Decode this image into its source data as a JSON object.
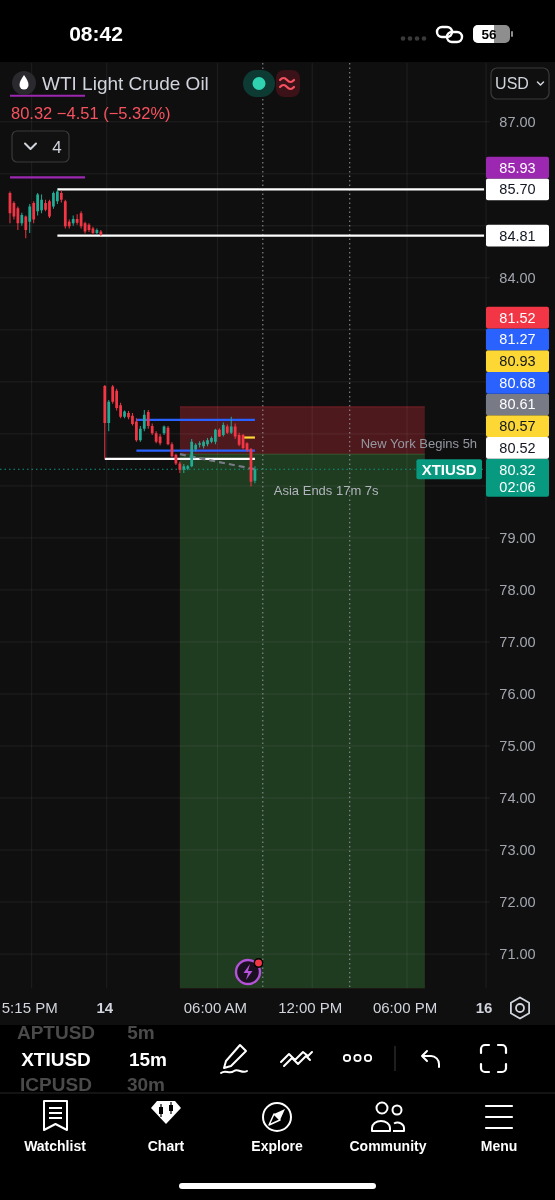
{
  "chart_data": {
    "type": "candlestick",
    "title": "WTI Light Crude Oil",
    "subtitle": "80.32 −4.51 (−5.32%)",
    "categories": [
      null,
      null,
      null,
      null,
      null,
      "5:15 PM",
      null,
      null,
      null,
      null,
      null,
      null,
      null,
      null,
      null,
      null,
      null,
      null,
      null,
      null,
      null,
      null,
      null,
      null,
      "14",
      null,
      null,
      null,
      null,
      null,
      null,
      null,
      null,
      null,
      null,
      null,
      null,
      null,
      null,
      null,
      null,
      null,
      null,
      null,
      null,
      null,
      null,
      null,
      null,
      null,
      null,
      null,
      "06:00 AM",
      null,
      null,
      null,
      null,
      null,
      null,
      null,
      null,
      null,
      null,
      null,
      null,
      null,
      null,
      null,
      null,
      null,
      null,
      null,
      null,
      null,
      null,
      null,
      "12:00 PM",
      null,
      null,
      null,
      null,
      null,
      null,
      null,
      null,
      null,
      null,
      null,
      null,
      null,
      null,
      null,
      null,
      null,
      null,
      null,
      null,
      null,
      null,
      null,
      "06:00 PM",
      null,
      null,
      null,
      null,
      null,
      null,
      null,
      null,
      null,
      null,
      null,
      null,
      null,
      null,
      null,
      null,
      null,
      null,
      null,
      "16",
      null
    ],
    "ohlc": [
      [
        85.63,
        85.66,
        85.05,
        85.24
      ],
      [
        85.44,
        85.47,
        85.12,
        85.18
      ],
      [
        85.34,
        85.37,
        84.92,
        85.05
      ],
      [
        85.05,
        85.25,
        85.0,
        85.21
      ],
      [
        85.18,
        85.2,
        84.76,
        84.92
      ],
      [
        85.08,
        85.42,
        84.86,
        85.37
      ],
      [
        85.44,
        85.47,
        85.05,
        85.12
      ],
      [
        85.28,
        85.63,
        85.2,
        85.6
      ],
      [
        85.3,
        85.6,
        85.24,
        85.5
      ],
      [
        85.44,
        85.5,
        85.28,
        85.31
      ],
      [
        85.47,
        85.5,
        85.15,
        85.18
      ],
      [
        85.37,
        85.66,
        85.33,
        85.63
      ],
      [
        85.47,
        85.7,
        85.42,
        85.66
      ],
      [
        85.63,
        85.68,
        85.45,
        85.5
      ],
      [
        85.47,
        85.5,
        84.95,
        84.99
      ],
      [
        85.08,
        85.12,
        84.95,
        84.99
      ],
      [
        85.05,
        85.2,
        85.0,
        85.13
      ],
      [
        85.13,
        85.22,
        85.02,
        85.06
      ],
      [
        85.24,
        85.28,
        84.95,
        84.99
      ],
      [
        85.05,
        85.08,
        84.85,
        84.89
      ],
      [
        85.02,
        85.05,
        84.88,
        84.92
      ],
      [
        84.95,
        84.98,
        84.83,
        84.86
      ],
      [
        84.86,
        84.95,
        84.83,
        84.92
      ],
      [
        84.89,
        84.92,
        84.81,
        84.83
      ],
      [
        81.92,
        81.94,
        80.52,
        81.21
      ],
      [
        81.21,
        81.65,
        81.05,
        81.62
      ],
      [
        81.91,
        81.94,
        81.58,
        81.62
      ],
      [
        81.83,
        81.87,
        81.45,
        81.5
      ],
      [
        81.55,
        81.6,
        81.3,
        81.33
      ],
      [
        81.33,
        81.45,
        81.3,
        81.43
      ],
      [
        81.4,
        81.44,
        81.28,
        81.32
      ],
      [
        81.35,
        81.4,
        81.16,
        81.19
      ],
      [
        81.24,
        81.3,
        80.85,
        80.88
      ],
      [
        80.88,
        81.15,
        80.85,
        81.1
      ],
      [
        81.1,
        81.46,
        81.05,
        81.37
      ],
      [
        81.42,
        81.46,
        81.1,
        81.15
      ],
      [
        81.15,
        81.2,
        80.98,
        81.01
      ],
      [
        81.01,
        81.05,
        80.82,
        80.85
      ],
      [
        80.95,
        81.0,
        80.78,
        80.82
      ],
      [
        81.01,
        81.16,
        80.98,
        81.14
      ],
      [
        81.12,
        81.15,
        80.78,
        80.8
      ],
      [
        80.8,
        80.84,
        80.55,
        80.57
      ],
      [
        80.6,
        80.62,
        80.4,
        80.43
      ],
      [
        80.43,
        80.47,
        80.25,
        80.31
      ],
      [
        80.31,
        80.42,
        80.25,
        80.38
      ],
      [
        80.33,
        80.4,
        80.3,
        80.38
      ],
      [
        80.38,
        80.9,
        80.36,
        80.85
      ],
      [
        80.7,
        80.82,
        80.66,
        80.79
      ],
      [
        80.79,
        80.86,
        80.74,
        80.82
      ],
      [
        80.76,
        80.88,
        80.72,
        80.85
      ],
      [
        80.8,
        80.92,
        80.76,
        80.88
      ],
      [
        80.85,
        80.95,
        80.82,
        80.92
      ],
      [
        80.85,
        81.1,
        80.8,
        81.08
      ],
      [
        81.08,
        81.11,
        80.94,
        80.95
      ],
      [
        80.98,
        81.22,
        80.95,
        81.17
      ],
      [
        81.14,
        81.18,
        81.0,
        81.02
      ],
      [
        81.02,
        81.33,
        81.0,
        81.14
      ],
      [
        81.14,
        81.2,
        80.9,
        80.95
      ],
      [
        80.98,
        81.02,
        80.76,
        80.79
      ],
      [
        80.98,
        81.0,
        80.7,
        80.73
      ],
      [
        80.82,
        80.84,
        80.65,
        80.69
      ],
      [
        80.71,
        80.73,
        79.99,
        80.08
      ],
      [
        80.1,
        80.38,
        80.05,
        80.32
      ],
      null,
      null,
      null,
      null,
      null,
      null,
      null,
      null,
      null,
      null,
      null,
      null,
      null,
      null,
      null,
      null,
      null,
      null,
      null,
      null,
      null,
      null,
      null,
      null,
      null,
      null,
      null,
      null,
      null,
      null,
      null,
      null,
      null,
      null,
      null,
      null,
      null,
      null,
      null,
      null,
      null,
      null,
      null,
      null,
      null,
      null,
      null,
      null,
      null,
      null,
      null,
      null,
      null,
      null,
      null,
      null,
      null,
      null,
      null
    ],
    "colors": [
      "#f23645",
      "#f23645",
      "#f23645",
      "#22ab94",
      "#f23645",
      "#22ab94",
      "#f23645",
      "#22ab94",
      "#22ab94",
      "#f23645",
      "#f23645",
      "#22ab94",
      "#22ab94",
      "#f23645",
      "#f23645",
      "#f23645",
      "#22ab94",
      "#f23645",
      "#f23645",
      "#f23645",
      "#f23645",
      "#f23645",
      "#22ab94",
      "#f23645",
      "#f23645",
      "#22ab94",
      "#f23645",
      "#f23645",
      "#f23645",
      "#22ab94",
      "#f23645",
      "#f23645",
      "#f23645",
      "#22ab94",
      "#22ab94",
      "#f23645",
      "#f23645",
      "#f23645",
      "#f23645",
      "#22ab94",
      "#f23645",
      "#f23645",
      "#f23645",
      "#f23645",
      "#22ab94",
      "#22ab94",
      "#22ab94",
      "#22ab94",
      "#22ab94",
      "#22ab94",
      "#22ab94",
      "#22ab94",
      "#22ab94",
      "#f23645",
      "#22ab94",
      "#f23645",
      "#22ab94",
      "#f23645",
      "#f23645",
      "#f23645",
      "#f23645",
      "#f23645",
      "#22ab94",
      null,
      null,
      null,
      null,
      null,
      null,
      null,
      null,
      null,
      null,
      null,
      null,
      null,
      null,
      null,
      null,
      null,
      null,
      null,
      null,
      null,
      null,
      null,
      null,
      null,
      null,
      null,
      null,
      null,
      null,
      null,
      null,
      null,
      null,
      null,
      null,
      null,
      null,
      null,
      null,
      null,
      null,
      null,
      null,
      null,
      null,
      null,
      null,
      null,
      null,
      null,
      null,
      null,
      null,
      null,
      null,
      null,
      null,
      null
    ],
    "ylim": [
      70.34,
      88.13
    ],
    "yticks": [
      {
        "value": 87,
        "label": "87.00"
      },
      {
        "value": 86,
        "label": null
      },
      {
        "value": 85,
        "label": null
      },
      {
        "value": 84,
        "label": "84.00"
      },
      {
        "value": 83,
        "label": null
      },
      {
        "value": 82,
        "label": null
      },
      {
        "value": 81,
        "label": null
      },
      {
        "value": 80,
        "label": null
      },
      {
        "value": 79,
        "label": "79.00"
      },
      {
        "value": 78,
        "label": "78.00"
      },
      {
        "value": 77,
        "label": "77.00"
      },
      {
        "value": 76,
        "label": "76.00"
      },
      {
        "value": 75,
        "label": "75.00"
      },
      {
        "value": 74,
        "label": "74.00"
      },
      {
        "value": 73,
        "label": "73.00"
      },
      {
        "value": 72,
        "label": "72.00"
      },
      {
        "value": 71,
        "label": "71.00"
      }
    ],
    "grid": true,
    "series": [
      {
        "type": "area",
        "color": "#f23645",
        "values": [
          null,
          null,
          null,
          null,
          null,
          null,
          null,
          null,
          null,
          null,
          null,
          null,
          null,
          null,
          null,
          null,
          null,
          null,
          null,
          null,
          null,
          null,
          null,
          null,
          null,
          null,
          null,
          null,
          null,
          null,
          null,
          null,
          null,
          null,
          null,
          null,
          null,
          null,
          null,
          null,
          null,
          null,
          null,
          81.52,
          81.52,
          81.52,
          81.52,
          81.52,
          81.52,
          81.52,
          81.52,
          81.52,
          81.52,
          81.52,
          81.52,
          81.52,
          81.52,
          81.52,
          81.52,
          81.52,
          81.52,
          81.52,
          81.52,
          81.52,
          81.52,
          81.52,
          81.52,
          81.52,
          81.52,
          81.52,
          81.52,
          81.52,
          81.52,
          81.52,
          81.52,
          81.52,
          81.52,
          81.52,
          81.52,
          81.52,
          81.52,
          81.52,
          81.52,
          81.52,
          81.52,
          81.52,
          81.52,
          81.52,
          81.52,
          81.52,
          81.52,
          81.52,
          81.52,
          81.52,
          81.52,
          81.52,
          81.52,
          81.52,
          81.52,
          81.52,
          81.52,
          81.52,
          81.52,
          81.52,
          81.52,
          81.52,
          null,
          null,
          null,
          null,
          null,
          null,
          null,
          null,
          null,
          null,
          null,
          null,
          null,
          null,
          null,
          null
        ]
      },
      {
        "type": "area",
        "color": "#4caf50",
        "values": [
          null,
          null,
          null,
          null,
          null,
          null,
          null,
          null,
          null,
          null,
          null,
          null,
          null,
          null,
          null,
          null,
          null,
          null,
          null,
          null,
          null,
          null,
          null,
          null,
          null,
          null,
          null,
          null,
          null,
          null,
          null,
          null,
          null,
          null,
          null,
          null,
          null,
          null,
          null,
          null,
          null,
          null,
          null,
          80.61,
          80.61,
          80.61,
          80.61,
          80.61,
          80.61,
          80.61,
          80.61,
          80.61,
          80.61,
          80.61,
          80.61,
          80.61,
          80.61,
          80.61,
          80.61,
          80.61,
          80.61,
          80.61,
          80.61,
          80.61,
          80.61,
          80.61,
          80.61,
          80.61,
          80.61,
          80.61,
          80.61,
          80.61,
          80.61,
          80.61,
          80.61,
          80.61,
          80.61,
          80.61,
          80.61,
          80.61,
          80.61,
          80.61,
          80.61,
          80.61,
          80.61,
          80.61,
          80.61,
          80.61,
          80.61,
          80.61,
          80.61,
          80.61,
          80.61,
          80.61,
          80.61,
          80.61,
          80.61,
          80.61,
          80.61,
          80.61,
          80.61,
          80.61,
          80.61,
          80.61,
          80.61,
          80.61,
          null,
          null,
          null,
          null,
          null,
          null,
          null,
          null,
          null,
          null,
          null,
          null,
          null,
          null,
          null,
          null
        ]
      },
      {
        "type": "line",
        "color": "#9c27b0",
        "values": [
          87.5,
          87.5,
          87.5,
          87.5,
          87.5,
          87.5,
          87.5,
          87.5,
          87.5,
          87.5,
          87.5,
          87.5,
          87.5,
          87.5,
          87.5,
          87.5,
          87.5,
          87.5,
          87.5,
          87.5,
          null,
          null,
          null,
          null,
          null,
          null,
          null,
          null,
          null,
          null,
          null,
          null,
          null,
          null,
          null,
          null,
          null,
          null,
          null,
          null,
          null,
          null,
          null,
          null,
          null,
          null,
          null,
          null,
          null,
          null,
          null,
          null,
          null,
          null,
          null,
          null,
          null,
          null,
          null,
          null,
          null,
          null,
          null,
          null,
          null,
          null,
          null,
          null,
          null,
          null,
          null,
          null,
          null,
          null,
          null,
          null,
          null,
          null,
          null,
          null,
          null,
          null,
          null,
          null,
          null,
          null,
          null,
          null,
          null,
          null,
          null,
          null,
          null,
          null,
          null,
          null,
          null,
          null,
          null,
          null,
          null,
          null,
          null,
          null,
          null,
          null,
          null,
          null,
          null,
          null,
          null,
          null,
          null,
          null,
          null,
          null,
          null,
          null,
          null,
          null,
          null,
          null
        ]
      },
      {
        "type": "line",
        "color": "#9c27b0",
        "values": [
          85.93,
          85.93,
          85.93,
          85.93,
          85.93,
          85.93,
          85.93,
          85.93,
          85.93,
          85.93,
          85.93,
          85.93,
          85.93,
          85.93,
          85.93,
          85.93,
          85.93,
          85.93,
          85.93,
          85.93,
          null,
          null,
          null,
          null,
          null,
          null,
          null,
          null,
          null,
          null,
          null,
          null,
          null,
          null,
          null,
          null,
          null,
          null,
          null,
          null,
          null,
          null,
          null,
          null,
          null,
          null,
          null,
          null,
          null,
          null,
          null,
          null,
          null,
          null,
          null,
          null,
          null,
          null,
          null,
          null,
          null,
          null,
          null,
          null,
          null,
          null,
          null,
          null,
          null,
          null,
          null,
          null,
          null,
          null,
          null,
          null,
          null,
          null,
          null,
          null,
          null,
          null,
          null,
          null,
          null,
          null,
          null,
          null,
          null,
          null,
          null,
          null,
          null,
          null,
          null,
          null,
          null,
          null,
          null,
          null,
          null,
          null,
          null,
          null,
          null,
          null,
          null,
          null,
          null,
          null,
          null,
          null,
          null,
          null,
          null,
          null,
          null,
          null,
          null,
          null,
          null,
          null
        ]
      },
      {
        "type": "line",
        "color": "#ffffff",
        "values": [
          null,
          null,
          null,
          null,
          null,
          null,
          null,
          null,
          null,
          null,
          null,
          null,
          85.7,
          85.7,
          85.7,
          85.7,
          85.7,
          85.7,
          85.7,
          85.7,
          85.7,
          85.7,
          85.7,
          85.7,
          85.7,
          85.7,
          85.7,
          85.7,
          85.7,
          85.7,
          85.7,
          85.7,
          85.7,
          85.7,
          85.7,
          85.7,
          85.7,
          85.7,
          85.7,
          85.7,
          85.7,
          85.7,
          85.7,
          85.7,
          85.7,
          85.7,
          85.7,
          85.7,
          85.7,
          85.7,
          85.7,
          85.7,
          85.7,
          85.7,
          85.7,
          85.7,
          85.7,
          85.7,
          85.7,
          85.7,
          85.7,
          85.7,
          85.7,
          85.7,
          85.7,
          85.7,
          85.7,
          85.7,
          85.7,
          85.7,
          85.7,
          85.7,
          85.7,
          85.7,
          85.7,
          85.7,
          85.7,
          85.7,
          85.7,
          85.7,
          85.7,
          85.7,
          85.7,
          85.7,
          85.7,
          85.7,
          85.7,
          85.7,
          85.7,
          85.7,
          85.7,
          85.7,
          85.7,
          85.7,
          85.7,
          85.7,
          85.7,
          85.7,
          85.7,
          85.7,
          85.7,
          85.7,
          85.7,
          85.7,
          85.7,
          85.7,
          85.7,
          85.7,
          85.7,
          85.7,
          85.7,
          85.7,
          85.7,
          85.7,
          85.7,
          85.7,
          85.7,
          85.7,
          85.7,
          85.7,
          85.7,
          null
        ],
        "value_labels": [
          null,
          null,
          null,
          null,
          null,
          null,
          null,
          null,
          null,
          null,
          null,
          null,
          null,
          null,
          null,
          null,
          null,
          null,
          null,
          null,
          null,
          null,
          null,
          null,
          null,
          null,
          null,
          null,
          null,
          null,
          null,
          null,
          null,
          null,
          null,
          null,
          null,
          null,
          null,
          null,
          null,
          null,
          null,
          null,
          null,
          null,
          null,
          null,
          null,
          null,
          null,
          null,
          null,
          null,
          null,
          null,
          null,
          null,
          null,
          null,
          null,
          null,
          null,
          null,
          null,
          null,
          null,
          null,
          null,
          null,
          null,
          null,
          null,
          null,
          null,
          null,
          null,
          null,
          null,
          null,
          null,
          null,
          null,
          null,
          null,
          null,
          null,
          null,
          null,
          null,
          null,
          null,
          null,
          null,
          null,
          null,
          null,
          null,
          null,
          null,
          null,
          null,
          null,
          null,
          null,
          null,
          null,
          null,
          null,
          null,
          null,
          null,
          null,
          null,
          null,
          null,
          null,
          null,
          null,
          null,
          "85.70",
          null
        ]
      },
      {
        "type": "line",
        "color": "#ffffff",
        "values": [
          null,
          null,
          null,
          null,
          null,
          null,
          null,
          null,
          null,
          null,
          null,
          null,
          84.81,
          84.81,
          84.81,
          84.81,
          84.81,
          84.81,
          84.81,
          84.81,
          84.81,
          84.81,
          84.81,
          84.81,
          84.81,
          84.81,
          84.81,
          84.81,
          84.81,
          84.81,
          84.81,
          84.81,
          84.81,
          84.81,
          84.81,
          84.81,
          84.81,
          84.81,
          84.81,
          84.81,
          84.81,
          84.81,
          84.81,
          84.81,
          84.81,
          84.81,
          84.81,
          84.81,
          84.81,
          84.81,
          84.81,
          84.81,
          84.81,
          84.81,
          84.81,
          84.81,
          84.81,
          84.81,
          84.81,
          84.81,
          84.81,
          84.81,
          84.81,
          84.81,
          84.81,
          84.81,
          84.81,
          84.81,
          84.81,
          84.81,
          84.81,
          84.81,
          84.81,
          84.81,
          84.81,
          84.81,
          84.81,
          84.81,
          84.81,
          84.81,
          84.81,
          84.81,
          84.81,
          84.81,
          84.81,
          84.81,
          84.81,
          84.81,
          84.81,
          84.81,
          84.81,
          84.81,
          84.81,
          84.81,
          84.81,
          84.81,
          84.81,
          84.81,
          84.81,
          84.81,
          84.81,
          84.81,
          84.81,
          84.81,
          84.81,
          84.81,
          84.81,
          84.81,
          84.81,
          84.81,
          84.81,
          84.81,
          84.81,
          84.81,
          84.81,
          84.81,
          84.81,
          84.81,
          84.81,
          84.81,
          84.81,
          null
        ],
        "value_labels": [
          null,
          null,
          null,
          null,
          null,
          null,
          null,
          null,
          null,
          null,
          null,
          null,
          null,
          null,
          null,
          null,
          null,
          null,
          null,
          null,
          null,
          null,
          null,
          null,
          null,
          null,
          null,
          null,
          null,
          null,
          null,
          null,
          null,
          null,
          null,
          null,
          null,
          null,
          null,
          null,
          null,
          null,
          null,
          null,
          null,
          null,
          null,
          null,
          null,
          null,
          null,
          null,
          null,
          null,
          null,
          null,
          null,
          null,
          null,
          null,
          null,
          null,
          null,
          null,
          null,
          null,
          null,
          null,
          null,
          null,
          null,
          null,
          null,
          null,
          null,
          null,
          null,
          null,
          null,
          null,
          null,
          null,
          null,
          null,
          null,
          null,
          null,
          null,
          null,
          null,
          null,
          null,
          null,
          null,
          null,
          null,
          null,
          null,
          null,
          null,
          null,
          null,
          null,
          null,
          null,
          null,
          null,
          null,
          null,
          null,
          null,
          null,
          null,
          null,
          null,
          null,
          null,
          null,
          null,
          null,
          "84.81",
          null
        ]
      },
      {
        "type": "line",
        "color": "#2962ff",
        "values": [
          null,
          null,
          null,
          null,
          null,
          null,
          null,
          null,
          null,
          null,
          null,
          null,
          null,
          null,
          null,
          null,
          null,
          null,
          null,
          null,
          null,
          null,
          null,
          null,
          null,
          null,
          null,
          null,
          null,
          null,
          null,
          null,
          81.27,
          81.27,
          81.27,
          81.27,
          81.27,
          81.27,
          81.27,
          81.27,
          81.27,
          81.27,
          81.27,
          81.27,
          81.27,
          81.27,
          81.27,
          81.27,
          81.27,
          81.27,
          81.27,
          81.27,
          81.27,
          81.27,
          81.27,
          81.27,
          81.27,
          81.27,
          81.27,
          81.27,
          81.27,
          81.27,
          81.27,
          null,
          null,
          null,
          null,
          null,
          null,
          null,
          null,
          null,
          null,
          null,
          null,
          null,
          null,
          null,
          null,
          null,
          null,
          null,
          null,
          null,
          null,
          null,
          null,
          null,
          null,
          null,
          null,
          null,
          null,
          null,
          null,
          null,
          null,
          null,
          null,
          null,
          null,
          null,
          null,
          null,
          null,
          null,
          null,
          null,
          null,
          null,
          null,
          null,
          null,
          null,
          null,
          null,
          null,
          null,
          null,
          null,
          null,
          null
        ]
      },
      {
        "type": "line",
        "color": "#2962ff",
        "values": [
          null,
          null,
          null,
          null,
          null,
          null,
          null,
          null,
          null,
          null,
          null,
          null,
          null,
          null,
          null,
          null,
          null,
          null,
          null,
          null,
          null,
          null,
          null,
          null,
          null,
          null,
          null,
          null,
          null,
          null,
          null,
          null,
          80.68,
          80.68,
          80.68,
          80.68,
          80.68,
          80.68,
          80.68,
          80.68,
          80.68,
          80.68,
          80.68,
          80.68,
          80.68,
          80.68,
          80.68,
          80.68,
          80.68,
          80.68,
          80.68,
          80.68,
          80.68,
          80.68,
          80.68,
          80.68,
          80.68,
          80.68,
          80.68,
          80.68,
          80.68,
          80.68,
          80.68,
          null,
          null,
          null,
          null,
          null,
          null,
          null,
          null,
          null,
          null,
          null,
          null,
          null,
          null,
          null,
          null,
          null,
          null,
          null,
          null,
          null,
          null,
          null,
          null,
          null,
          null,
          null,
          null,
          null,
          null,
          null,
          null,
          null,
          null,
          null,
          null,
          null,
          null,
          null,
          null,
          null,
          null,
          null,
          null,
          null,
          null,
          null,
          null,
          null,
          null,
          null,
          null,
          null,
          null,
          null,
          null,
          null,
          null,
          null
        ]
      },
      {
        "type": "line",
        "color": "#ffffff",
        "values": [
          null,
          null,
          null,
          null,
          null,
          null,
          null,
          null,
          null,
          null,
          null,
          null,
          null,
          null,
          null,
          null,
          null,
          null,
          null,
          null,
          null,
          null,
          null,
          null,
          80.52,
          80.52,
          80.52,
          80.52,
          80.52,
          80.52,
          80.52,
          80.52,
          80.52,
          80.52,
          80.52,
          80.52,
          80.52,
          80.52,
          80.52,
          80.52,
          80.52,
          80.52,
          80.52,
          80.52,
          80.52,
          80.52,
          80.52,
          80.52,
          80.52,
          80.52,
          80.52,
          80.52,
          80.52,
          80.52,
          80.52,
          80.52,
          80.52,
          80.52,
          80.52,
          80.52,
          80.52,
          80.52,
          80.52,
          null,
          null,
          null,
          null,
          null,
          null,
          null,
          null,
          null,
          null,
          null,
          null,
          null,
          null,
          null,
          null,
          null,
          null,
          null,
          null,
          null,
          null,
          null,
          null,
          null,
          null,
          null,
          null,
          null,
          null,
          null,
          null,
          null,
          null,
          null,
          null,
          null,
          null,
          null,
          null,
          null,
          null,
          null,
          null,
          null,
          null,
          null,
          null,
          null,
          null,
          null,
          null,
          null,
          null,
          null,
          null,
          null,
          null,
          null
        ]
      },
      {
        "type": "line",
        "color": "#787b86",
        "line_style": "dashed",
        "values": [
          null,
          null,
          null,
          null,
          null,
          null,
          null,
          null,
          null,
          null,
          null,
          null,
          null,
          null,
          null,
          null,
          null,
          null,
          null,
          null,
          null,
          null,
          null,
          null,
          null,
          null,
          null,
          null,
          null,
          null,
          null,
          null,
          null,
          null,
          null,
          null,
          null,
          null,
          null,
          null,
          null,
          null,
          null,
          80.61,
          null,
          null,
          null,
          null,
          null,
          null,
          null,
          null,
          null,
          null,
          null,
          null,
          null,
          null,
          null,
          null,
          null,
          null,
          80.32,
          null,
          null,
          null,
          null,
          null,
          null,
          null,
          null,
          null,
          null,
          null,
          null,
          null,
          null,
          null,
          null,
          null,
          null,
          null,
          null,
          null,
          null,
          null,
          null,
          null,
          null,
          null,
          null,
          null,
          null,
          null,
          null,
          null,
          null,
          null,
          null,
          null,
          null,
          null,
          null,
          null,
          null,
          null,
          null,
          null,
          null,
          null,
          null,
          null,
          null,
          null,
          null,
          null,
          null,
          null,
          null,
          null,
          null,
          null
        ]
      },
      {
        "type": "line",
        "color": "#fdd835",
        "values": [
          null,
          null,
          null,
          null,
          null,
          null,
          null,
          null,
          null,
          null,
          null,
          null,
          null,
          null,
          null,
          null,
          null,
          null,
          null,
          null,
          null,
          null,
          null,
          null,
          null,
          null,
          null,
          null,
          null,
          null,
          null,
          null,
          null,
          null,
          null,
          null,
          null,
          null,
          null,
          null,
          null,
          null,
          null,
          null,
          null,
          null,
          null,
          null,
          null,
          null,
          null,
          null,
          null,
          null,
          null,
          null,
          null,
          null,
          null,
          80.93,
          80.93,
          80.93,
          80.93,
          null,
          null,
          null,
          null,
          null,
          null,
          null,
          null,
          null,
          null,
          null,
          null,
          null,
          null,
          null,
          null,
          null,
          null,
          null,
          null,
          null,
          null,
          null,
          null,
          null,
          null,
          null,
          null,
          null,
          null,
          null,
          null,
          null,
          null,
          null,
          null,
          null,
          null,
          null,
          null,
          null,
          null,
          null,
          null,
          null,
          null,
          null,
          null,
          null,
          null,
          null,
          null,
          null,
          null,
          null,
          null,
          null,
          null,
          null
        ]
      }
    ],
    "ref_lines": [
      {
        "axis": "y",
        "value": 80.32,
        "label": "80.32",
        "color": "#089981",
        "line_style": "dotted"
      }
    ],
    "annotations": [
      "08:42",
      "56",
      "USD",
      "4",
      "85.93",
      "81.52",
      "81.27",
      "80.93",
      "80.68",
      "80.61",
      "80.57",
      "80.52",
      {
        "text": "XTIUSD",
        "y": 80.32
      },
      "02:06",
      "Asia Ends 17m 7s",
      "New York Begins 5h",
      "APTUSD",
      "5m",
      "XTIUSD",
      "15m",
      "ICPUSD",
      "30m",
      "Watchlist",
      "Chart",
      "Explore",
      "Community",
      "Menu"
    ]
  }
}
